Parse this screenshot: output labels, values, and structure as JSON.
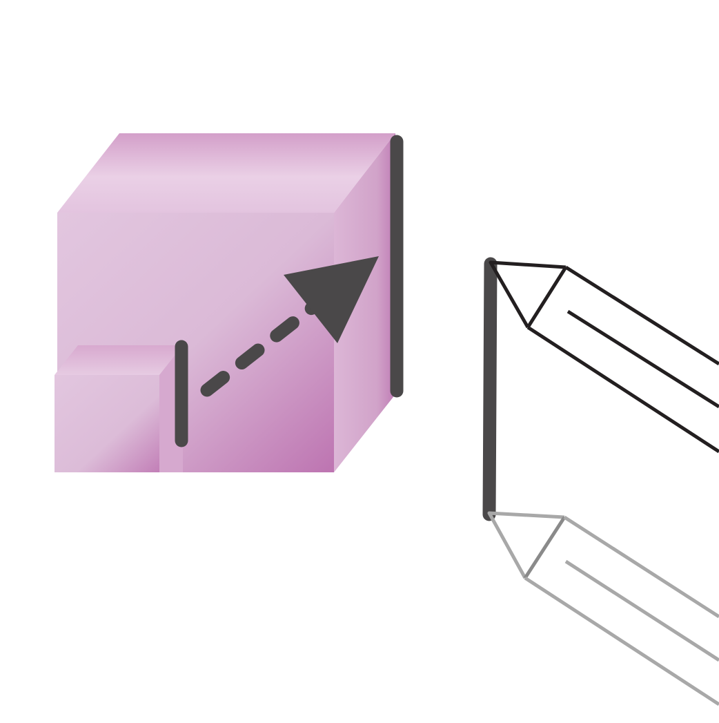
{
  "illustration": {
    "subject": "scale-up-icon",
    "colors": {
      "cube_light": "#ecd3e8",
      "cube_mid": "#dfc0dc",
      "cube_dark": "#c07ab5",
      "cube_top_dark": "#d4a0ca",
      "marker": "#4a4849",
      "pencil_outline": "#231f20",
      "pencil_ghost": "#a8a8a8"
    },
    "icons": [
      "cube-icon",
      "small-cube-icon",
      "arrow-icon",
      "pencil-icon",
      "pencil-ghost-icon"
    ]
  }
}
